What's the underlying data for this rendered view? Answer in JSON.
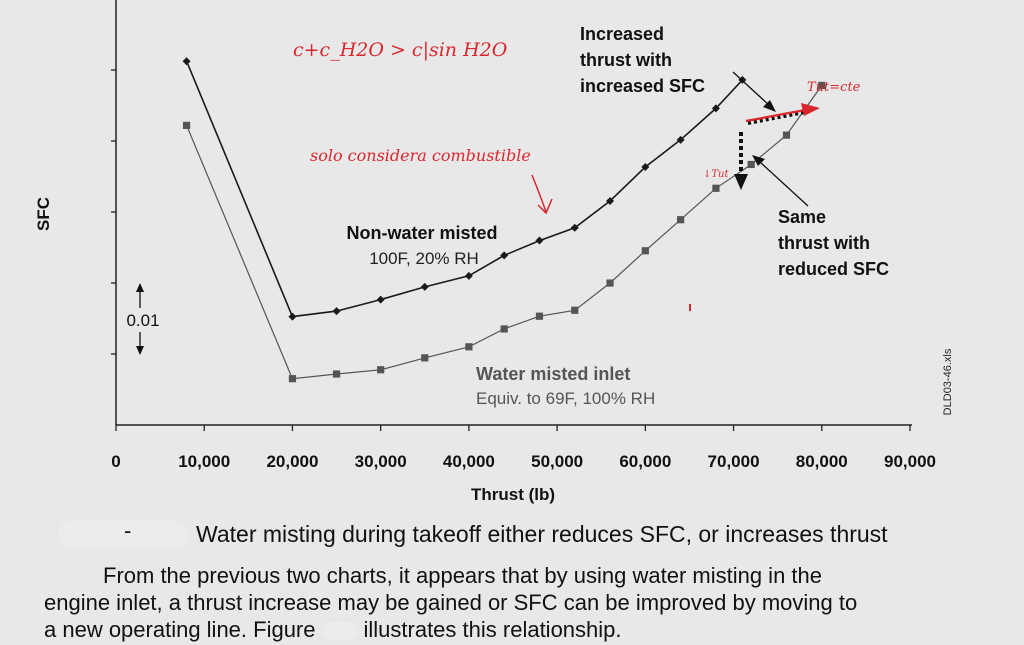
{
  "chart_data": {
    "type": "line",
    "xlabel": "Thrust (lb)",
    "ylabel": "SFC",
    "xlim": [
      0,
      90000
    ],
    "ylim": [
      0,
      1
    ],
    "x_ticks": [
      "0",
      "10,000",
      "20,000",
      "30,000",
      "40,000",
      "50,000",
      "60,000",
      "70,000",
      "80,000",
      "90,000"
    ],
    "grid": false,
    "series": [
      {
        "name": "Non-water misted",
        "color": "#1a1a1a",
        "marker": "diamond",
        "x": [
          8000,
          20000,
          25000,
          30000,
          35000,
          40000,
          44000,
          48000,
          52000,
          56000,
          60000,
          64000,
          68000,
          71000
        ],
        "y": [
          0.856,
          0.255,
          0.268,
          0.295,
          0.325,
          0.351,
          0.399,
          0.434,
          0.464,
          0.527,
          0.607,
          0.671,
          0.745,
          0.812
        ]
      },
      {
        "name": "Water misted inlet",
        "color": "#555555",
        "marker": "square",
        "x": [
          8000,
          20000,
          25000,
          30000,
          35000,
          40000,
          44000,
          48000,
          52000,
          56000,
          60000,
          64000,
          68000,
          72000,
          76000,
          80000
        ],
        "y": [
          0.705,
          0.109,
          0.12,
          0.13,
          0.158,
          0.184,
          0.226,
          0.256,
          0.27,
          0.334,
          0.41,
          0.483,
          0.557,
          0.613,
          0.682,
          0.799
        ]
      }
    ],
    "annotations": {
      "nonwater_title": "Non-water misted",
      "nonwater_sub": "100F, 20% RH",
      "water_title": "Water misted inlet",
      "water_sub": "Equiv. to 69F, 100% RH",
      "increased_1": "Increased",
      "increased_2": "thrust with",
      "increased_3": "increased SFC",
      "same_1": "Same",
      "same_2": "thrust with",
      "same_3": "reduced SFC",
      "scale_label": "0.01",
      "file_label": "DLD03-46.xls"
    },
    "handwritten": {
      "formula": "c+c_H2O > c|sin H2O",
      "note": "solo considera combustible",
      "tut_cte": "Tut=cte",
      "tut_down": "↓Tut"
    }
  },
  "caption": "Water misting during takeoff either reduces SFC, or increases thrust",
  "paragraph": {
    "line1": "From the previous two charts, it appears that by using water misting in the",
    "line2": "engine inlet, a thrust increase may be gained or SFC can be improved by moving to",
    "line3_a": "a new operating line. Figure",
    "line3_b": "illustrates this relationship."
  },
  "colors": {
    "background": "#e8e8e8",
    "line_dark": "#1a1a1a",
    "line_gray": "#555555",
    "ink_red": "#d9272e"
  }
}
